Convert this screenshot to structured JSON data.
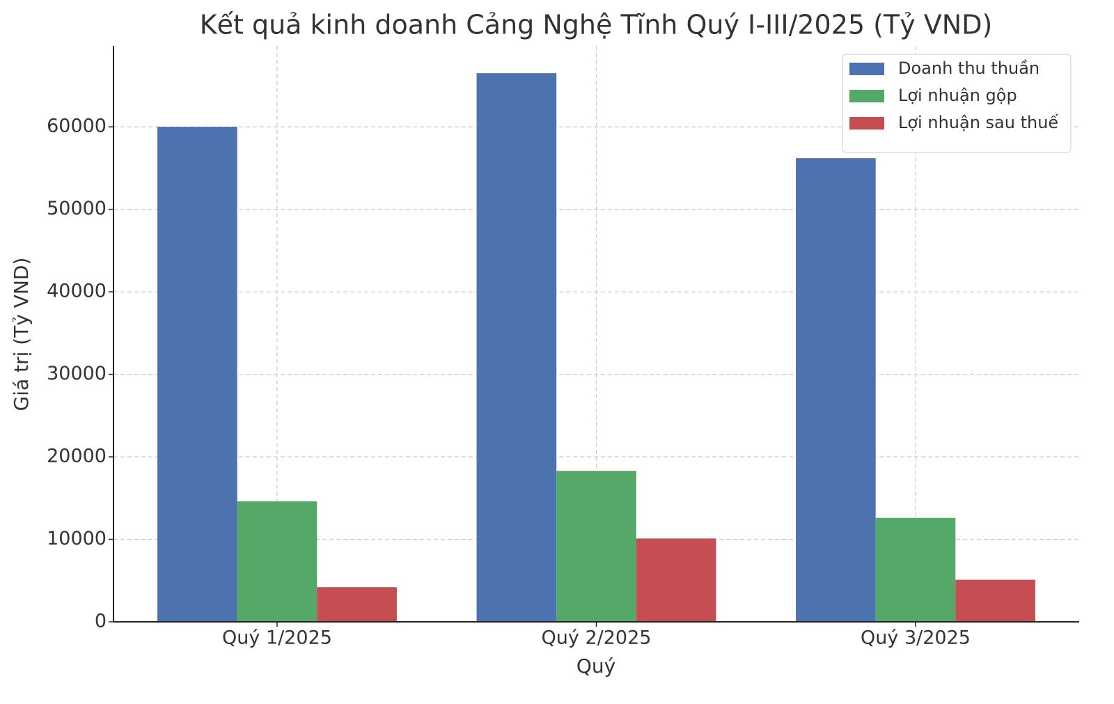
{
  "chart_data": {
    "type": "bar",
    "title": "Kết quả kinh doanh Cảng Nghệ Tĩnh Quý I-III/2025 (Tỷ VND)",
    "x_label": "Quý",
    "y_label": "Giá trị (Tỷ VND)",
    "categories": [
      "Quý 1/2025",
      "Quý 2/2025",
      "Quý 3/2025"
    ],
    "series": [
      {
        "name": "Doanh thu thuần",
        "color": "#4c72b0",
        "values": [
          60000,
          66500,
          56200
        ]
      },
      {
        "name": "Lợi nhuận gộp",
        "color": "#55a868",
        "values": [
          14600,
          18300,
          12600
        ]
      },
      {
        "name": "Lợi nhuận sau thuế",
        "color": "#c44e52",
        "values": [
          4200,
          10100,
          5100
        ]
      }
    ],
    "ylim": [
      0,
      69800
    ],
    "yticks": [
      0,
      10000,
      20000,
      30000,
      40000,
      50000,
      60000
    ],
    "grid": true,
    "legend": "upper right"
  }
}
